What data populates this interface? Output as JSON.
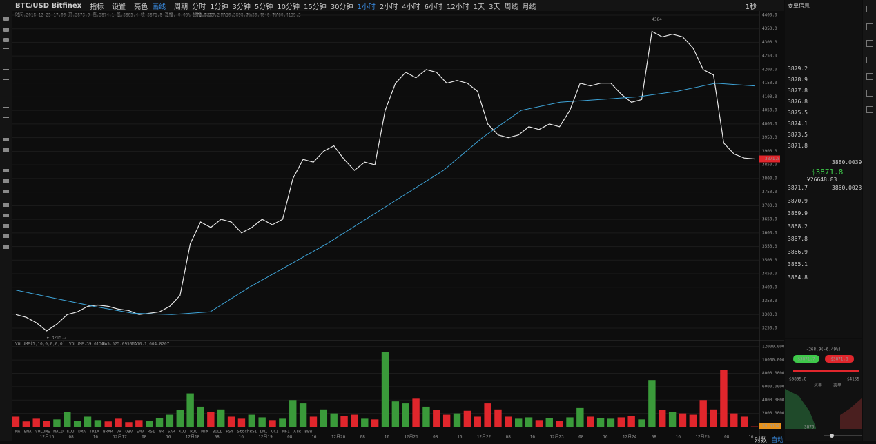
{
  "toolbar": {
    "symbol": "BTC/USD Bitfinex",
    "buttons": [
      "指标",
      "设置",
      "亮色",
      "画线"
    ],
    "period_label": "周期",
    "periods": [
      "分时",
      "1分钟",
      "3分钟",
      "5分钟",
      "10分钟",
      "15分钟",
      "30分钟",
      "1小时",
      "2小时",
      "4小时",
      "6小时",
      "12小时",
      "1天",
      "3天",
      "周线",
      "月线"
    ],
    "active_period": "1小时",
    "refresh": "1秒"
  },
  "info_line": "时间:2018-12-25 17:00  开:3873.9  高:3874.1  低:3865.4  收:3871.8  涨幅:-0.06%  振幅:0.23%",
  "ma_labels": [
    {
      "text": "MA5:3889.2",
      "color": "#e8e8e8"
    },
    {
      "text": "MA10:3898.7",
      "color": "#e6d84a"
    },
    {
      "text": "MA30:4040.7",
      "color": "#d54ec4"
    },
    {
      "text": "MA60:4139.3",
      "color": "#3ea4d8"
    }
  ],
  "volume_info": [
    "VOLUME(5,10,0,0,0,0)",
    "VOLUME:39.6134",
    "MA5:525.0950",
    "MA10:1,604.8207"
  ],
  "indicator_tabs": [
    "MA",
    "EMA",
    "VOLUME",
    "MACD",
    "KDJ",
    "DMA",
    "TRIX",
    "BRAR",
    "VR",
    "OBV",
    "EMV",
    "RSI",
    "WR",
    "SAR",
    "KDJ",
    "ROC",
    "MTM",
    "BOLL",
    "PSY",
    "StochRSI",
    "DMI",
    "CCI",
    "MFI",
    "ATR",
    "BBW"
  ],
  "chart_data": [
    {
      "type": "line",
      "ylim": [
        3207,
        4410
      ],
      "yticks": [
        {
          "value": 3250,
          "label": "3250.0"
        },
        {
          "value": 3300,
          "label": "3300.0"
        },
        {
          "value": 3350,
          "label": "3350.0"
        },
        {
          "value": 3400,
          "label": "3400.0"
        },
        {
          "value": 3450,
          "label": "3450.0"
        },
        {
          "value": 3500,
          "label": "3500.0"
        },
        {
          "value": 3550,
          "label": "3550.0"
        },
        {
          "value": 3600,
          "label": "3600.0"
        },
        {
          "value": 3650,
          "label": "3650.0"
        },
        {
          "value": 3700,
          "label": "3700.0"
        },
        {
          "value": 3750,
          "label": "3750.0"
        },
        {
          "value": 3800,
          "label": "3800.0"
        },
        {
          "value": 3850,
          "label": "3850.0"
        },
        {
          "value": 3900,
          "label": "3900.0"
        },
        {
          "value": 3950,
          "label": "3950.0"
        },
        {
          "value": 4000,
          "label": "4000.0"
        },
        {
          "value": 4050,
          "label": "4050.0"
        },
        {
          "value": 4100,
          "label": "4100.0"
        },
        {
          "value": 4150,
          "label": "4150.0"
        },
        {
          "value": 4200,
          "label": "4200.0"
        },
        {
          "value": 4250,
          "label": "4250.0"
        },
        {
          "value": 4300,
          "label": "4300.0"
        },
        {
          "value": 4350,
          "label": "4350.0"
        },
        {
          "value": 4400,
          "label": "4400.0"
        }
      ],
      "series": [
        {
          "color": "#e8e8e8",
          "values": [
            3300,
            3290,
            3270,
            3240,
            3265,
            3300,
            3310,
            3330,
            3335,
            3330,
            3320,
            3315,
            3300,
            3305,
            3310,
            3330,
            3370,
            3560,
            3640,
            3620,
            3650,
            3640,
            3600,
            3620,
            3650,
            3630,
            3650,
            3800,
            3870,
            3860,
            3900,
            3920,
            3870,
            3830,
            3860,
            3850,
            4050,
            4150,
            4190,
            4170,
            4200,
            4190,
            4150,
            4160,
            4150,
            4120,
            4000,
            3960,
            3950,
            3960,
            3990,
            3980,
            4000,
            3990,
            4050,
            4150,
            4140,
            4150,
            4150,
            4110,
            4080,
            4090,
            4340,
            4320,
            4330,
            4320,
            4280,
            4200,
            4180,
            3930,
            3890,
            3875,
            3871.8
          ]
        },
        {
          "color": "#3ea4d8",
          "values": [
            3390,
            3360,
            3330,
            3305,
            3300,
            3310,
            3400,
            3480,
            3560,
            3650,
            3740,
            3830,
            3950,
            4050,
            4080,
            4090,
            4100,
            4120,
            4150,
            4140
          ]
        }
      ],
      "last_price": {
        "value": 3871.8,
        "label": "3871.8"
      },
      "max_label": {
        "value": 4384,
        "label": "4384"
      },
      "min_label": {
        "value": 3215.2,
        "label": "← 3215.2"
      },
      "xticks": [
        "12月16",
        "08",
        "16",
        "12月17",
        "08",
        "16",
        "12月18",
        "08",
        "16",
        "12月19",
        "08",
        "16",
        "12月20",
        "08",
        "16",
        "12月21",
        "08",
        "16",
        "12月22",
        "08",
        "16",
        "12月23",
        "08",
        "16",
        "12月24",
        "08",
        "16",
        "12月25",
        "08",
        "16"
      ]
    },
    {
      "type": "bar",
      "ylim": [
        0,
        12800
      ],
      "yticks": [
        {
          "value": 2000,
          "label": "2000.0000"
        },
        {
          "value": 4000,
          "label": "4000.0000"
        },
        {
          "value": 6000,
          "label": "6000.0000"
        },
        {
          "value": 8000,
          "label": "8000.0000"
        },
        {
          "value": 10000,
          "label": "10000.0000"
        },
        {
          "value": 12000,
          "label": "12000.0000"
        }
      ],
      "up_color": "#3a9a3a",
      "down_color": "#e0262c",
      "values": [
        1500,
        800,
        1200,
        900,
        1100,
        2200,
        900,
        1500,
        1000,
        800,
        1200,
        700,
        1000,
        900,
        1300,
        1800,
        2500,
        5000,
        3000,
        2200,
        2600,
        1500,
        1200,
        1800,
        1400,
        1000,
        1200,
        4000,
        3500,
        1500,
        2600,
        2000,
        1600,
        1800,
        1200,
        1100,
        11200,
        3800,
        3500,
        4200,
        3000,
        2500,
        1800,
        2000,
        2400,
        1500,
        3500,
        2600,
        1500,
        1200,
        1400,
        1000,
        1300,
        900,
        1400,
        2800,
        1500,
        1300,
        1200,
        1400,
        1600,
        1100,
        7000,
        2500,
        2200,
        2000,
        1800,
        4000,
        2600,
        8500,
        2000,
        1500,
        40
      ],
      "last_label": "39.6134"
    }
  ],
  "orderbook": {
    "title": "委单信息",
    "asks": [
      "3879.2",
      "3878.9",
      "3877.8",
      "3876.8",
      "3875.5",
      "3874.1",
      "3873.5",
      "3871.8"
    ],
    "ask_total": "3880.0039",
    "price": "$3871.8",
    "price_cny": "¥26648.83",
    "bid_total": "3860.0023",
    "bids": [
      "3871.7",
      "3870.9",
      "3869.9",
      "3868.2",
      "3867.8",
      "3866.9",
      "3865.1",
      "3864.8"
    ]
  },
  "depth": {
    "change": "-268.9(-6.49%)",
    "bid": "$3871.7",
    "ask": "$3871.8",
    "low": "$3835.8",
    "high": "$4155",
    "legend": [
      "买单",
      "卖单"
    ],
    "axis": "3870"
  },
  "bottom": [
    "对数",
    "自动"
  ]
}
